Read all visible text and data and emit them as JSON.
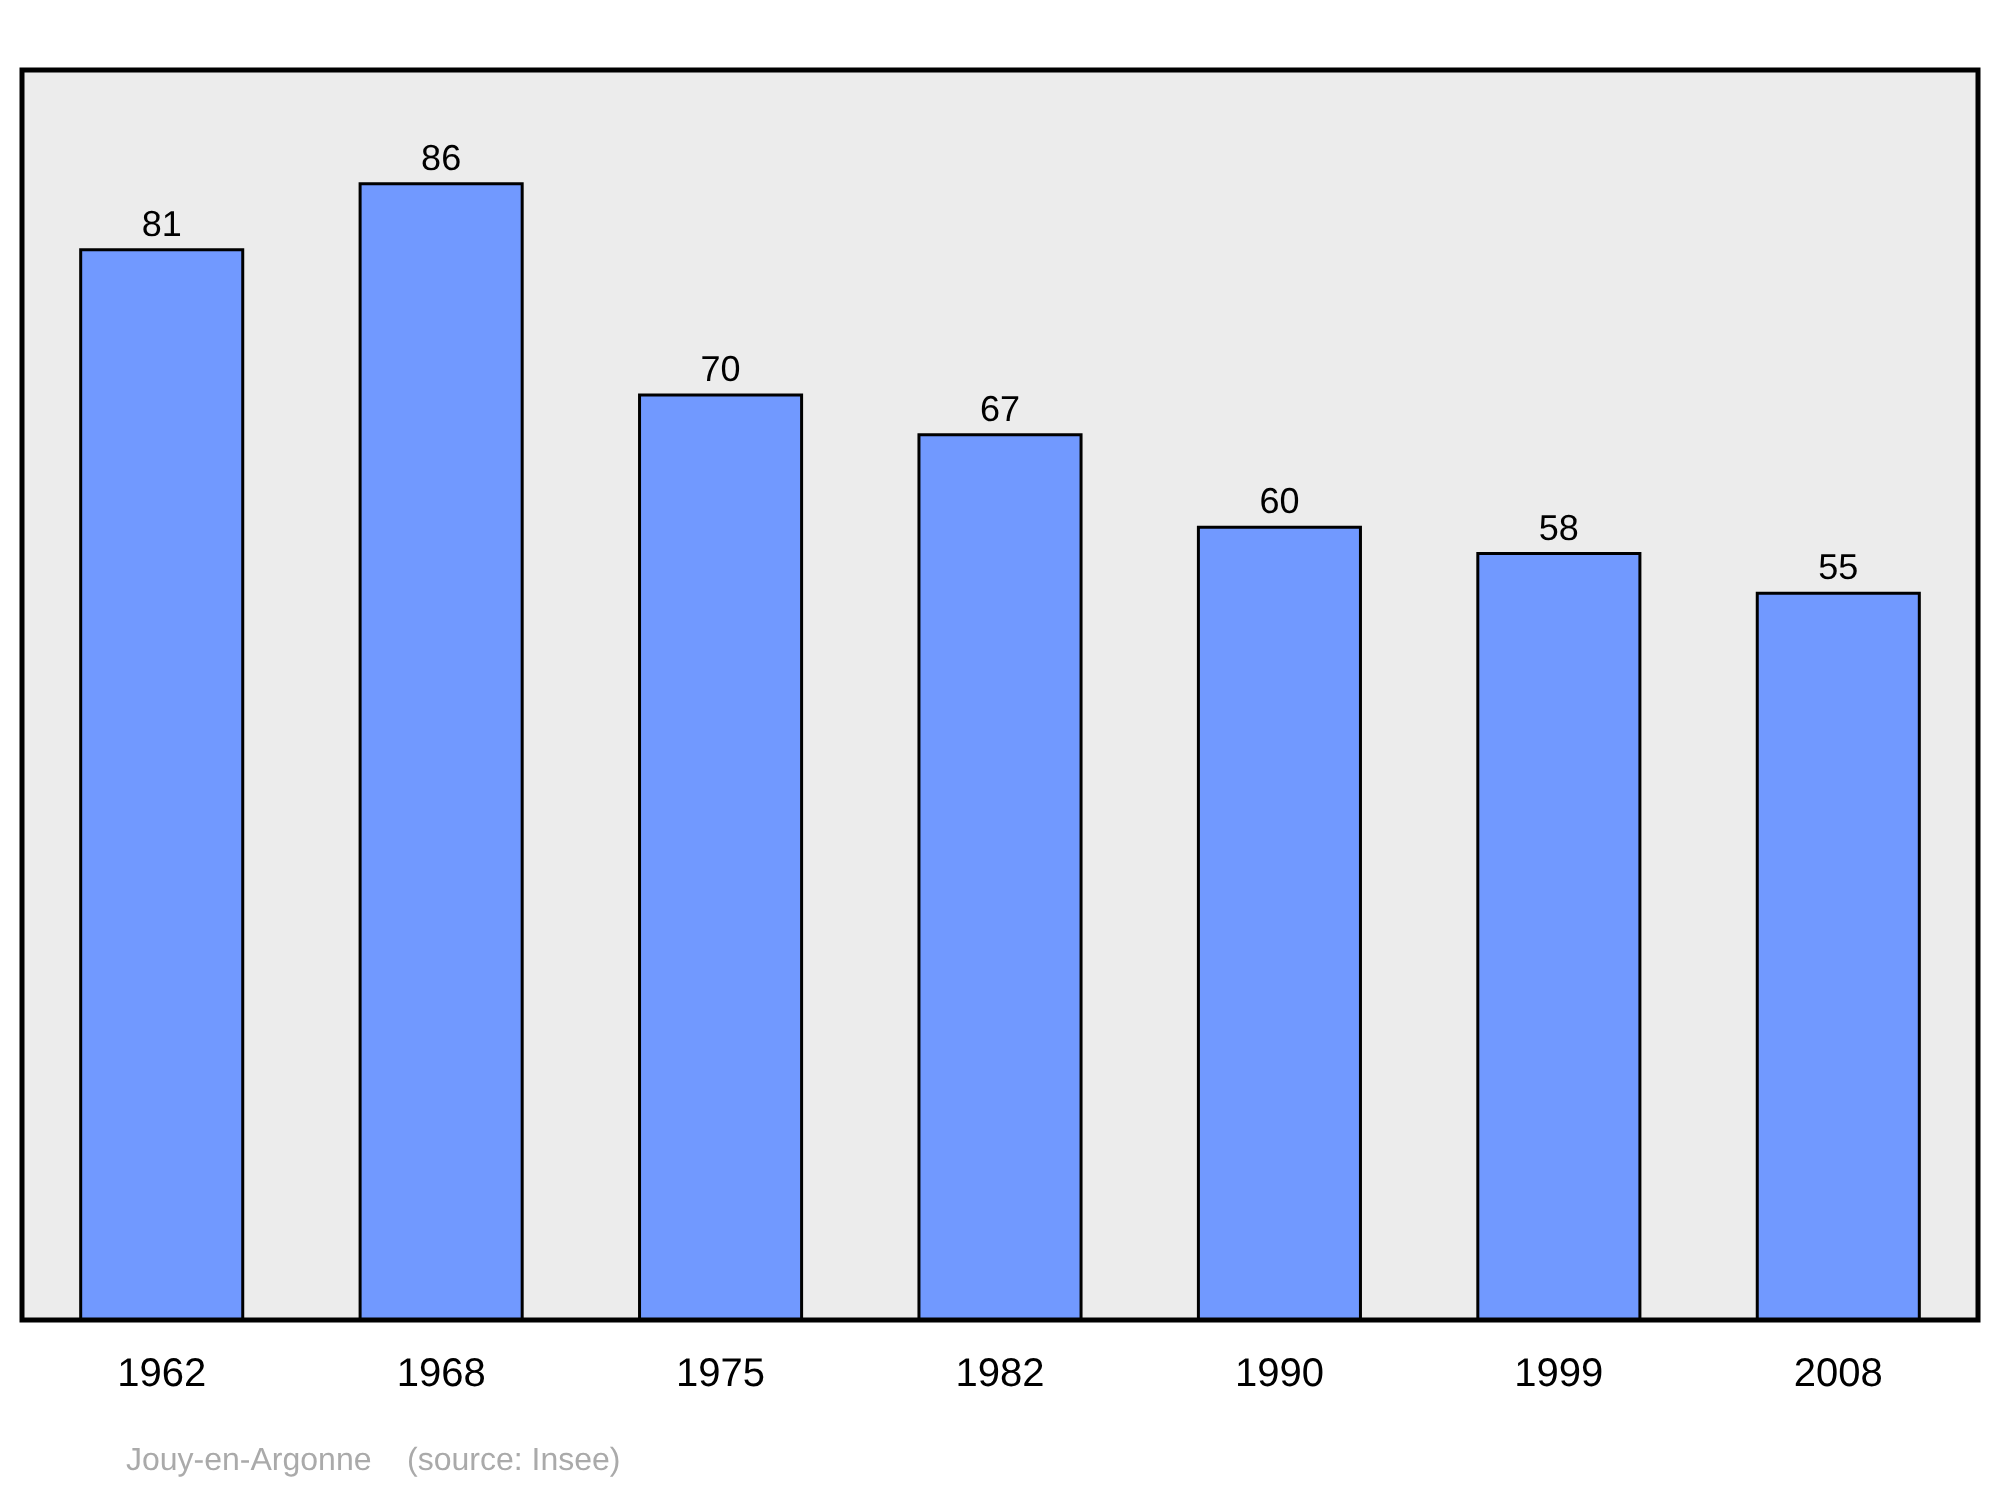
{
  "chart_data": {
    "type": "bar",
    "categories": [
      "1962",
      "1968",
      "1975",
      "1982",
      "1990",
      "1999",
      "2008"
    ],
    "values": [
      81,
      86,
      70,
      67,
      60,
      58,
      55
    ],
    "color": "#7199ff",
    "data_labels": true,
    "grid": false,
    "tick_labels": "x",
    "annotations": [
      "Jouy-en-Argonne    (source: Insee)"
    ]
  }
}
